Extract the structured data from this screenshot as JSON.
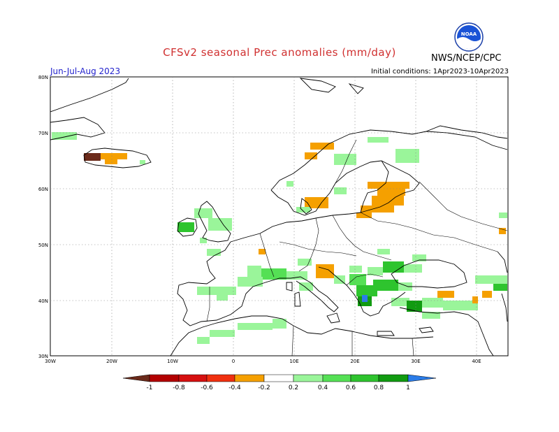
{
  "header": {
    "title": "CFSv2 seasonal Prec anomalies (mm/day)",
    "season": "Jun-Jul-Aug 2023",
    "initial_conditions": "Initial conditions: 1Apr2023-10Apr2023",
    "org": "NWS/NCEP/CPC",
    "logo_text": "NOAA"
  },
  "map": {
    "lat_labels": [
      "80N",
      "70N",
      "60N",
      "50N",
      "40N",
      "30N"
    ],
    "lon_labels": [
      "30W",
      "20W",
      "10W",
      "0",
      "10E",
      "20E",
      "30E",
      "40E"
    ],
    "colors": {
      "wet_0_2": "#9af59a",
      "wet_0_4": "#55e055",
      "wet_0_6": "#2ec42e",
      "wet_0_8": "#119b11",
      "wet_1": "#2b7ce8",
      "dry_0_2": "#f5a000",
      "dry_0_4": "#f55000",
      "dry_0_6": "#e01a1a",
      "dry_0_8": "#b30000",
      "dry_1": "#6b2a1a"
    }
  },
  "colorbar": {
    "labels": [
      "-1",
      "-0.8",
      "-0.6",
      "-0.4",
      "-0.2",
      "0.2",
      "0.4",
      "0.6",
      "0.8",
      "1"
    ],
    "colors": [
      "#6b2a1a",
      "#b30000",
      "#d61010",
      "#f03010",
      "#f56000",
      "#f5a000",
      "#ffffff",
      "#9af59a",
      "#55e055",
      "#2ec42e",
      "#119b11",
      "#2b7ce8"
    ]
  }
}
